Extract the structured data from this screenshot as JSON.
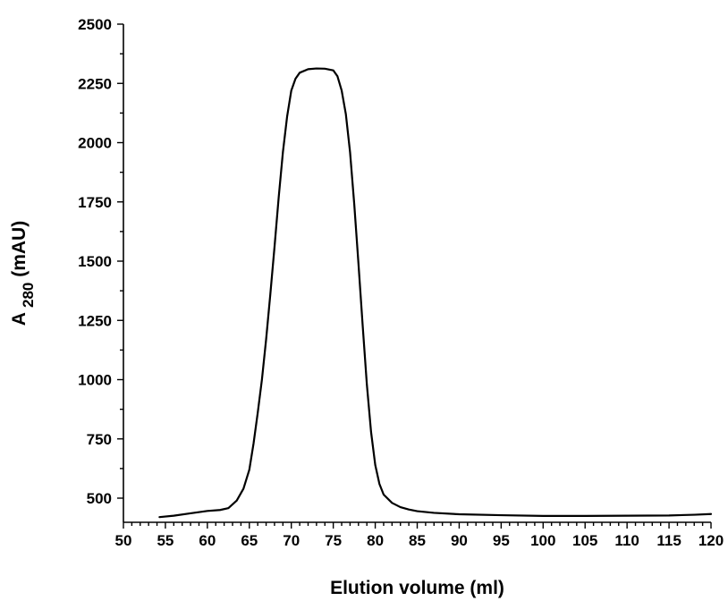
{
  "chart_data": {
    "type": "line",
    "title": "",
    "xlabel": "Elution volume (ml)",
    "ylabel": {
      "main": "A",
      "subscript": "280",
      "suffix": "(mAU)"
    },
    "xlim": [
      50,
      120
    ],
    "ylim": [
      400,
      2500
    ],
    "xticks": [
      "50",
      "55",
      "60",
      "65",
      "70",
      "75",
      "80",
      "85",
      "90",
      "95",
      "100",
      "105",
      "110",
      "115",
      "120"
    ],
    "yticks": [
      "500",
      "750",
      "1000",
      "1250",
      "1500",
      "1750",
      "2000",
      "2250",
      "2500"
    ],
    "grid": false,
    "legend": "none",
    "series": [
      {
        "color": "#000000",
        "points": [
          [
            54.3,
            420
          ],
          [
            56,
            426
          ],
          [
            58,
            436
          ],
          [
            60,
            446
          ],
          [
            61.5,
            450
          ],
          [
            62.5,
            458
          ],
          [
            63.5,
            490
          ],
          [
            64.3,
            540
          ],
          [
            65,
            620
          ],
          [
            65.5,
            730
          ],
          [
            66,
            860
          ],
          [
            66.5,
            1000
          ],
          [
            67,
            1170
          ],
          [
            67.5,
            1360
          ],
          [
            68,
            1560
          ],
          [
            68.5,
            1770
          ],
          [
            69,
            1960
          ],
          [
            69.5,
            2110
          ],
          [
            70,
            2220
          ],
          [
            70.5,
            2270
          ],
          [
            71,
            2295
          ],
          [
            72,
            2310
          ],
          [
            73,
            2313
          ],
          [
            74,
            2312
          ],
          [
            75,
            2305
          ],
          [
            75.5,
            2280
          ],
          [
            76,
            2220
          ],
          [
            76.5,
            2120
          ],
          [
            77,
            1960
          ],
          [
            77.5,
            1740
          ],
          [
            78,
            1490
          ],
          [
            78.5,
            1230
          ],
          [
            79,
            980
          ],
          [
            79.5,
            780
          ],
          [
            80,
            640
          ],
          [
            80.5,
            560
          ],
          [
            81,
            515
          ],
          [
            82,
            480
          ],
          [
            83,
            462
          ],
          [
            84,
            452
          ],
          [
            85,
            445
          ],
          [
            87,
            438
          ],
          [
            90,
            432
          ],
          [
            95,
            428
          ],
          [
            100,
            425
          ],
          [
            105,
            425
          ],
          [
            110,
            426
          ],
          [
            115,
            427
          ],
          [
            118,
            430
          ],
          [
            120,
            433
          ]
        ]
      }
    ]
  }
}
